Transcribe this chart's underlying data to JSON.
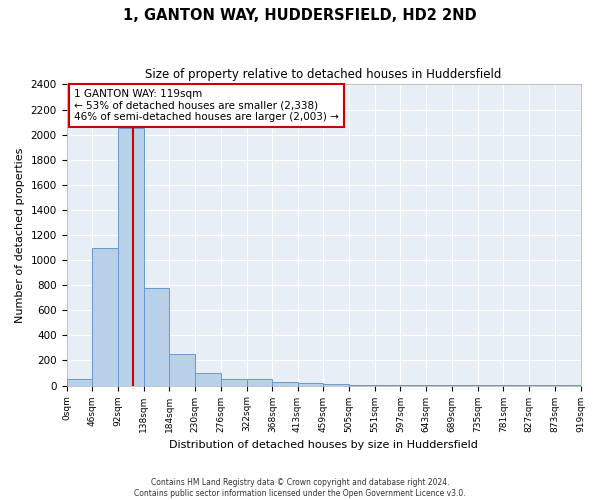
{
  "title": "1, GANTON WAY, HUDDERSFIELD, HD2 2ND",
  "subtitle": "Size of property relative to detached houses in Huddersfield",
  "xlabel": "Distribution of detached houses by size in Huddersfield",
  "ylabel": "Number of detached properties",
  "bar_heights": [
    50,
    1100,
    2050,
    775,
    250,
    100,
    50,
    50,
    30,
    20,
    10,
    5,
    5,
    5,
    5,
    5,
    3,
    3,
    3,
    3
  ],
  "bin_edges": [
    0,
    46,
    92,
    138,
    184,
    230,
    276,
    322,
    368,
    413,
    459,
    505,
    551,
    597,
    643,
    689,
    735,
    781,
    827,
    873,
    919
  ],
  "tick_labels": [
    "0sqm",
    "46sqm",
    "92sqm",
    "138sqm",
    "184sqm",
    "230sqm",
    "276sqm",
    "322sqm",
    "368sqm",
    "413sqm",
    "459sqm",
    "505sqm",
    "551sqm",
    "597sqm",
    "643sqm",
    "689sqm",
    "735sqm",
    "781sqm",
    "827sqm",
    "873sqm",
    "919sqm"
  ],
  "bar_color": "#b8d0e8",
  "bar_edge_color": "#6699cc",
  "property_line_x": 119,
  "property_line_color": "#cc0000",
  "annotation_text": "1 GANTON WAY: 119sqm\n← 53% of detached houses are smaller (2,338)\n46% of semi-detached houses are larger (2,003) →",
  "annotation_box_color": "#ffffff",
  "annotation_box_edge_color": "#cc0000",
  "ylim": [
    0,
    2400
  ],
  "yticks": [
    0,
    200,
    400,
    600,
    800,
    1000,
    1200,
    1400,
    1600,
    1800,
    2000,
    2200,
    2400
  ],
  "plot_bg_color": "#e8eef5",
  "fig_bg_color": "#ffffff",
  "grid_color": "#ffffff",
  "footer_line1": "Contains HM Land Registry data © Crown copyright and database right 2024.",
  "footer_line2": "Contains public sector information licensed under the Open Government Licence v3.0."
}
